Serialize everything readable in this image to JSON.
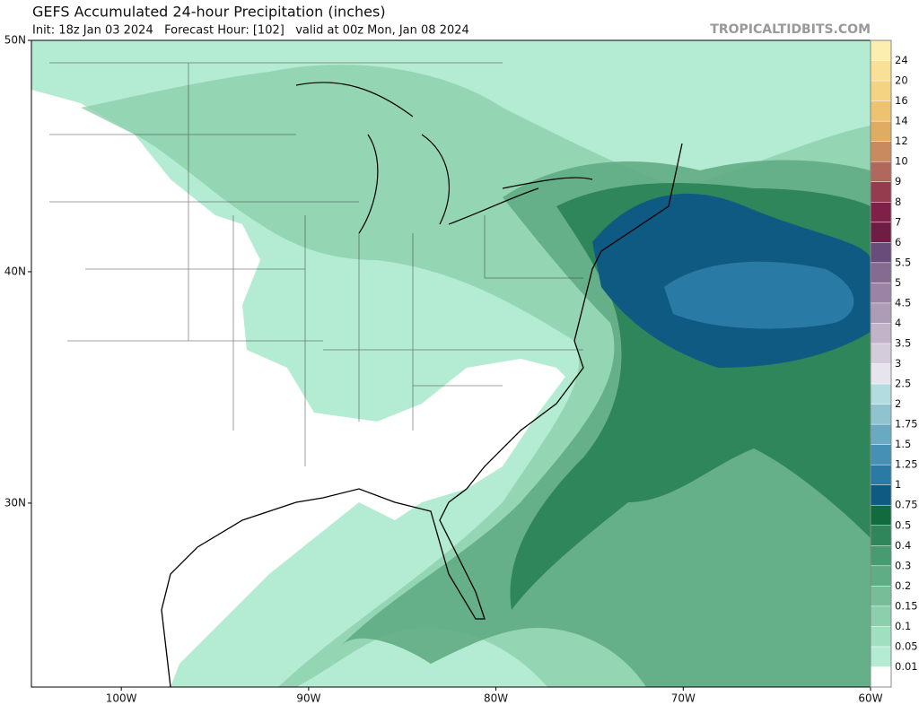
{
  "header": {
    "title": "GEFS Accumulated 24-hour Precipitation (inches)",
    "subtitle": "Init: 18z Jan 03 2024   Forecast Hour: [102]   valid at 00z Mon, Jan 08 2024",
    "watermark": "TROPICALTIDBITS.COM"
  },
  "map": {
    "lonlim": [
      -104.8,
      -60
    ],
    "latlim": [
      22.05,
      50
    ],
    "lat_ticks": [
      {
        "value": 50,
        "label": "50N"
      },
      {
        "value": 40,
        "label": "40N"
      },
      {
        "value": 30,
        "label": "30N"
      }
    ],
    "lon_ticks": [
      {
        "value": -100,
        "label": "100W"
      },
      {
        "value": -90,
        "label": "90W"
      },
      {
        "value": -80,
        "label": "80W"
      },
      {
        "value": -70,
        "label": "70W"
      },
      {
        "value": -60,
        "label": "60W"
      }
    ],
    "colorbar": {
      "levels": [
        0.01,
        0.05,
        0.1,
        0.15,
        0.2,
        0.3,
        0.4,
        0.5,
        0.75,
        1,
        1.25,
        1.5,
        1.75,
        2,
        2.5,
        3,
        3.5,
        4,
        4.5,
        5,
        5.5,
        6,
        7,
        8,
        9,
        10,
        12,
        14,
        16,
        20,
        24
      ],
      "colors": [
        "#ffffff",
        "#b3ecd3",
        "#a0e0c0",
        "#8ccfac",
        "#77be98",
        "#60ac84",
        "#489a70",
        "#2e865a",
        "#126b3f",
        "#0f5a82",
        "#2a7aa6",
        "#4690b5",
        "#6aa9c2",
        "#8ec3cf",
        "#b3dce0",
        "#e8e4ee",
        "#d5ccdb",
        "#c2b3c9",
        "#ae9bb6",
        "#9a83a4",
        "#866b91",
        "#6a4c7a",
        "#6f1d45",
        "#801f48",
        "#963c4f",
        "#b0685c",
        "#c88a5e",
        "#e0ac62",
        "#edc270",
        "#f4d382",
        "#f8e196",
        "#fbeeae"
      ]
    }
  }
}
